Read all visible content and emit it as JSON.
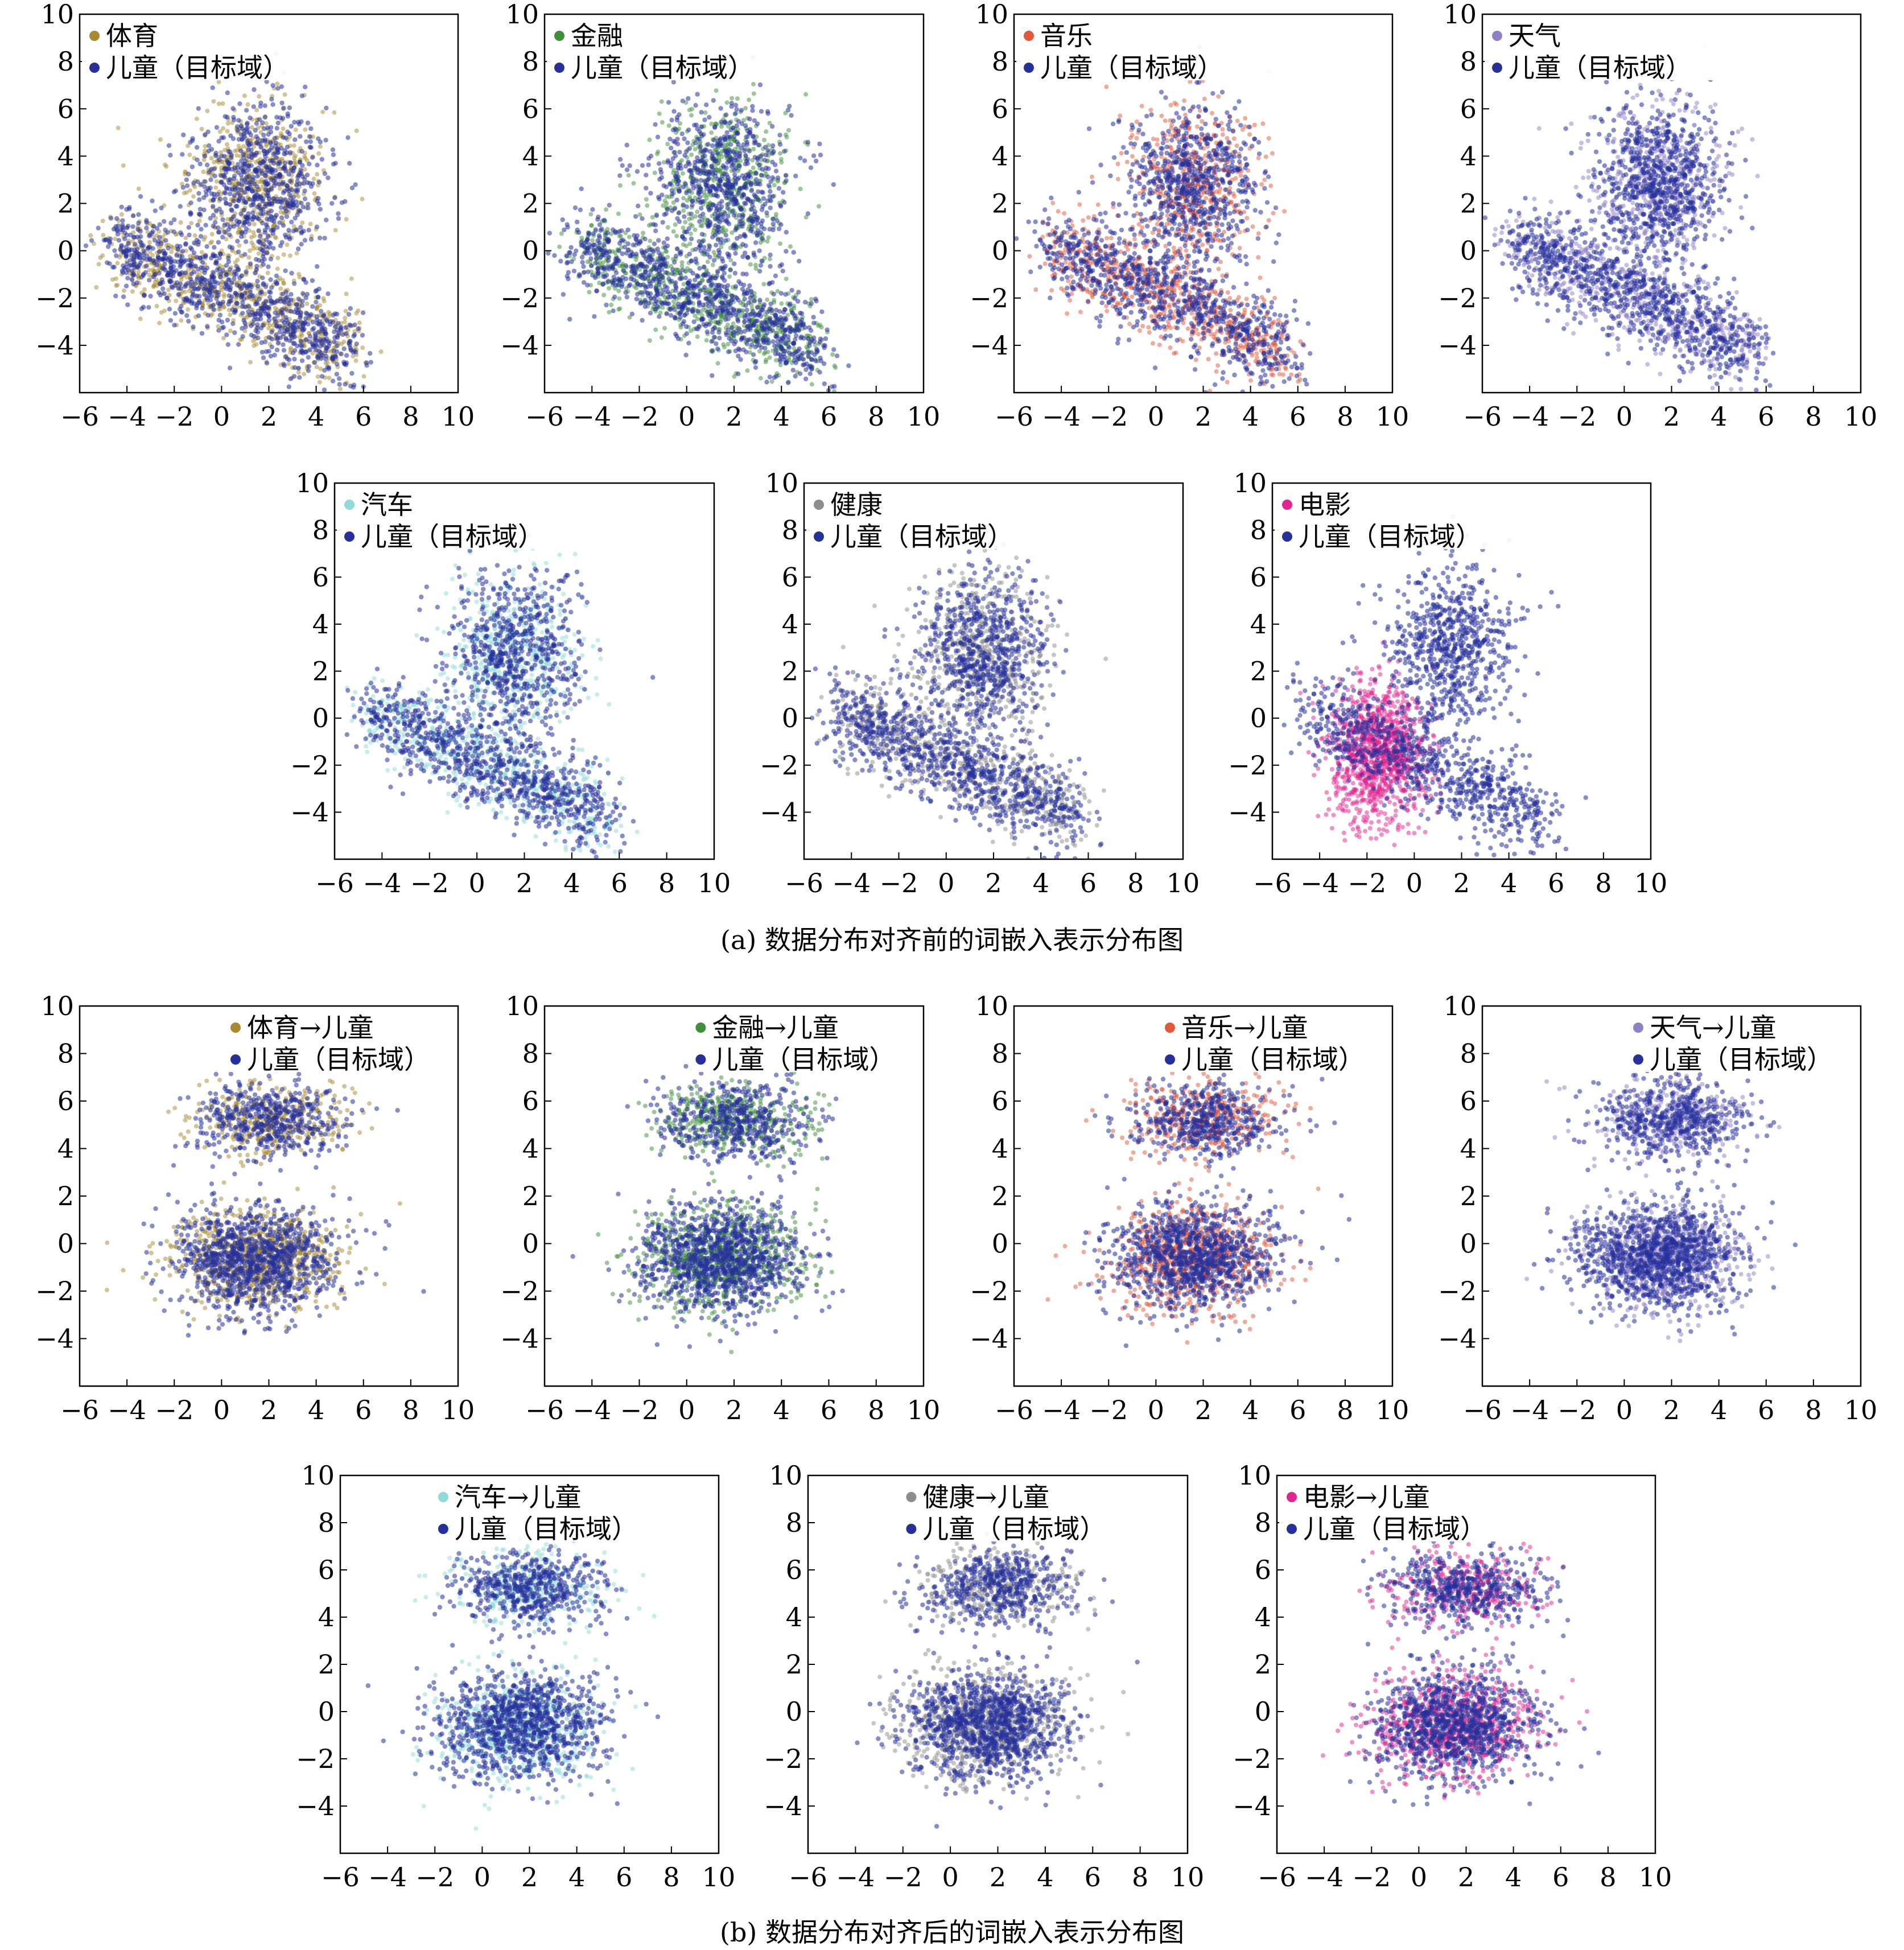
{
  "figure": {
    "caption_a": "(a)  数据分布对齐前的词嵌入表示分布图",
    "caption_b": "(b)  数据分布对齐后的词嵌入表示分布图"
  },
  "colors": {
    "target": "#25309a",
    "体育": "#a8892f",
    "金融": "#3e8e3a",
    "音乐": "#e0573a",
    "天气": "#9080c8",
    "汽车": "#8fdada",
    "健康": "#8d8d8d",
    "电影": "#e2258f"
  },
  "chart_data": [
    {
      "id": "a1",
      "group": "a",
      "type": "scatter",
      "x_ticks": [
        -6,
        -4,
        -2,
        0,
        2,
        4,
        6,
        8,
        10
      ],
      "y_ticks": [
        -4,
        -2,
        0,
        2,
        4,
        6,
        8,
        10
      ],
      "xlim": [
        -6,
        10
      ],
      "ylim": [
        -6,
        10
      ],
      "series": [
        {
          "name": "体育",
          "color_key": "体育",
          "shape": "before"
        },
        {
          "name": "儿童（目标域）",
          "color_key": "target",
          "shape": "before"
        }
      ]
    },
    {
      "id": "a2",
      "group": "a",
      "type": "scatter",
      "x_ticks": [
        -6,
        -4,
        -2,
        0,
        2,
        4,
        6,
        8,
        10
      ],
      "y_ticks": [
        -4,
        -2,
        0,
        2,
        4,
        6,
        8,
        10
      ],
      "xlim": [
        -6,
        10
      ],
      "ylim": [
        -6,
        10
      ],
      "series": [
        {
          "name": "金融",
          "color_key": "金融",
          "shape": "before"
        },
        {
          "name": "儿童（目标域）",
          "color_key": "target",
          "shape": "before"
        }
      ]
    },
    {
      "id": "a3",
      "group": "a",
      "type": "scatter",
      "x_ticks": [
        -6,
        -4,
        -2,
        0,
        2,
        4,
        6,
        8,
        10
      ],
      "y_ticks": [
        -4,
        -2,
        0,
        2,
        4,
        6,
        8,
        10
      ],
      "xlim": [
        -6,
        10
      ],
      "ylim": [
        -6,
        10
      ],
      "series": [
        {
          "name": "音乐",
          "color_key": "音乐",
          "shape": "before"
        },
        {
          "name": "儿童（目标域）",
          "color_key": "target",
          "shape": "before"
        }
      ]
    },
    {
      "id": "a4",
      "group": "a",
      "type": "scatter",
      "x_ticks": [
        -6,
        -4,
        -2,
        0,
        2,
        4,
        6,
        8,
        10
      ],
      "y_ticks": [
        -4,
        -2,
        0,
        2,
        4,
        6,
        8,
        10
      ],
      "xlim": [
        -6,
        10
      ],
      "ylim": [
        -6,
        10
      ],
      "series": [
        {
          "name": "天气",
          "color_key": "天气",
          "shape": "before"
        },
        {
          "name": "儿童（目标域）",
          "color_key": "target",
          "shape": "before"
        }
      ]
    },
    {
      "id": "a5",
      "group": "a",
      "type": "scatter",
      "x_ticks": [
        -6,
        -4,
        -2,
        0,
        2,
        4,
        6,
        8,
        10
      ],
      "y_ticks": [
        -4,
        -2,
        0,
        2,
        4,
        6,
        8,
        10
      ],
      "xlim": [
        -6,
        10
      ],
      "ylim": [
        -6,
        10
      ],
      "series": [
        {
          "name": "汽车",
          "color_key": "汽车",
          "shape": "before"
        },
        {
          "name": "儿童（目标域）",
          "color_key": "target",
          "shape": "before"
        }
      ]
    },
    {
      "id": "a6",
      "group": "a",
      "type": "scatter",
      "x_ticks": [
        -6,
        -4,
        -2,
        0,
        2,
        4,
        6,
        8,
        10
      ],
      "y_ticks": [
        -4,
        -2,
        0,
        2,
        4,
        6,
        8,
        10
      ],
      "xlim": [
        -6,
        10
      ],
      "ylim": [
        -6,
        10
      ],
      "series": [
        {
          "name": "健康",
          "color_key": "健康",
          "shape": "before"
        },
        {
          "name": "儿童（目标域）",
          "color_key": "target",
          "shape": "before"
        }
      ]
    },
    {
      "id": "a7",
      "group": "a",
      "type": "scatter",
      "x_ticks": [
        -6,
        -4,
        -2,
        0,
        2,
        4,
        6,
        8,
        10
      ],
      "y_ticks": [
        -4,
        -2,
        0,
        2,
        4,
        6,
        8,
        10
      ],
      "xlim": [
        -6,
        10
      ],
      "ylim": [
        -6,
        10
      ],
      "series": [
        {
          "name": "电影",
          "color_key": "电影",
          "shape": "movie"
        },
        {
          "name": "儿童（目标域）",
          "color_key": "target",
          "shape": "before"
        }
      ]
    },
    {
      "id": "b1",
      "group": "b",
      "type": "scatter",
      "x_ticks": [
        -6,
        -4,
        -2,
        0,
        2,
        4,
        6,
        8,
        10
      ],
      "y_ticks": [
        -4,
        -2,
        0,
        2,
        4,
        6,
        8,
        10
      ],
      "xlim": [
        -6,
        10
      ],
      "ylim": [
        -6,
        10
      ],
      "series": [
        {
          "name": "体育→儿童",
          "color_key": "体育",
          "shape": "after"
        },
        {
          "name": "儿童（目标域）",
          "color_key": "target",
          "shape": "after"
        }
      ]
    },
    {
      "id": "b2",
      "group": "b",
      "type": "scatter",
      "x_ticks": [
        -6,
        -4,
        -2,
        0,
        2,
        4,
        6,
        8,
        10
      ],
      "y_ticks": [
        -4,
        -2,
        0,
        2,
        4,
        6,
        8,
        10
      ],
      "xlim": [
        -6,
        10
      ],
      "ylim": [
        -6,
        10
      ],
      "series": [
        {
          "name": "金融→儿童",
          "color_key": "金融",
          "shape": "after"
        },
        {
          "name": "儿童（目标域）",
          "color_key": "target",
          "shape": "after"
        }
      ]
    },
    {
      "id": "b3",
      "group": "b",
      "type": "scatter",
      "x_ticks": [
        -6,
        -4,
        -2,
        0,
        2,
        4,
        6,
        8,
        10
      ],
      "y_ticks": [
        -4,
        -2,
        0,
        2,
        4,
        6,
        8,
        10
      ],
      "xlim": [
        -6,
        10
      ],
      "ylim": [
        -6,
        10
      ],
      "series": [
        {
          "name": "音乐→儿童",
          "color_key": "音乐",
          "shape": "after"
        },
        {
          "name": "儿童（目标域）",
          "color_key": "target",
          "shape": "after"
        }
      ]
    },
    {
      "id": "b4",
      "group": "b",
      "type": "scatter",
      "x_ticks": [
        -6,
        -4,
        -2,
        0,
        2,
        4,
        6,
        8,
        10
      ],
      "y_ticks": [
        -4,
        -2,
        0,
        2,
        4,
        6,
        8,
        10
      ],
      "xlim": [
        -6,
        10
      ],
      "ylim": [
        -6,
        10
      ],
      "series": [
        {
          "name": "天气→儿童",
          "color_key": "天气",
          "shape": "after"
        },
        {
          "name": "儿童（目标域）",
          "color_key": "target",
          "shape": "after"
        }
      ]
    },
    {
      "id": "b5",
      "group": "b",
      "type": "scatter",
      "x_ticks": [
        -6,
        -4,
        -2,
        0,
        2,
        4,
        6,
        8,
        10
      ],
      "y_ticks": [
        -4,
        -2,
        0,
        2,
        4,
        6,
        8,
        10
      ],
      "xlim": [
        -6,
        10
      ],
      "ylim": [
        -6,
        10
      ],
      "series": [
        {
          "name": "汽车→儿童",
          "color_key": "汽车",
          "shape": "after"
        },
        {
          "name": "儿童（目标域）",
          "color_key": "target",
          "shape": "after"
        }
      ]
    },
    {
      "id": "b6",
      "group": "b",
      "type": "scatter",
      "x_ticks": [
        -6,
        -4,
        -2,
        0,
        2,
        4,
        6,
        8,
        10
      ],
      "y_ticks": [
        -4,
        -2,
        0,
        2,
        4,
        6,
        8,
        10
      ],
      "xlim": [
        -6,
        10
      ],
      "ylim": [
        -6,
        10
      ],
      "series": [
        {
          "name": "健康→儿童",
          "color_key": "健康",
          "shape": "after"
        },
        {
          "name": "儿童（目标域）",
          "color_key": "target",
          "shape": "after"
        }
      ]
    },
    {
      "id": "b7",
      "group": "b",
      "type": "scatter",
      "x_ticks": [
        -6,
        -4,
        -2,
        0,
        2,
        4,
        6,
        8,
        10
      ],
      "y_ticks": [
        -4,
        -2,
        0,
        2,
        4,
        6,
        8,
        10
      ],
      "xlim": [
        -6,
        10
      ],
      "ylim": [
        -6,
        10
      ],
      "series": [
        {
          "name": "电影→儿童",
          "color_key": "电影",
          "shape": "after"
        },
        {
          "name": "儿童（目标域）",
          "color_key": "target",
          "shape": "after"
        }
      ]
    }
  ]
}
